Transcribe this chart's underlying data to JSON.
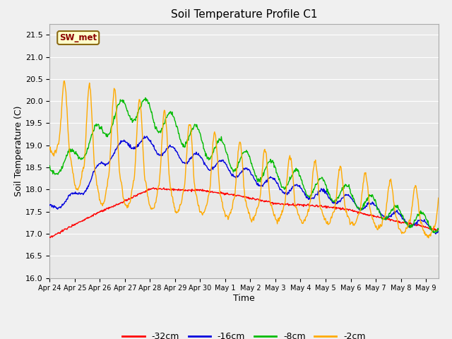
{
  "title": "Soil Temperature Profile C1",
  "xlabel": "Time",
  "ylabel": "Soil Temperature (C)",
  "ylim": [
    16.0,
    21.75
  ],
  "yticks": [
    16.0,
    16.5,
    17.0,
    17.5,
    18.0,
    18.5,
    19.0,
    19.5,
    20.0,
    20.5,
    21.0,
    21.5
  ],
  "legend_labels": [
    "-32cm",
    "-16cm",
    "-8cm",
    "-2cm"
  ],
  "legend_colors": [
    "#ff0000",
    "#0000dd",
    "#00bb00",
    "#ffaa00"
  ],
  "annotation_text": "SW_met",
  "annotation_color": "#8b0000",
  "annotation_bg": "#ffffcc",
  "annotation_edge": "#8b6914",
  "plot_bg": "#e8e8e8",
  "fig_bg": "#f0f0f0",
  "grid_color": "#ffffff",
  "xtick_labels": [
    "Apr 24",
    "Apr 25",
    "Apr 26",
    "Apr 27",
    "Apr 28",
    "Apr 29",
    "Apr 30",
    "May 1",
    "May 2",
    "May 3",
    "May 4",
    "May 5",
    "May 6",
    "May 7",
    "May 8",
    "May 9"
  ],
  "line_width": 1.0,
  "total_days": 15.5
}
